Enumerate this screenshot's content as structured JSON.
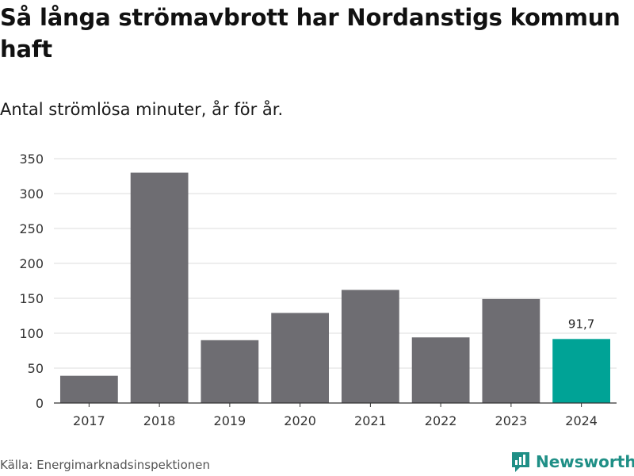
{
  "chart_data": {
    "type": "bar",
    "title": "Så långa strömavbrott har Nordanstigs kommun haft",
    "subtitle": "Antal strömlösa minuter, år för år.",
    "xlabel": "",
    "ylabel": "",
    "categories": [
      "2017",
      "2018",
      "2019",
      "2020",
      "2021",
      "2022",
      "2023",
      "2024"
    ],
    "values": [
      39,
      330,
      90,
      129,
      162,
      94,
      149,
      91.7
    ],
    "highlight_index": 7,
    "data_labels": [
      {
        "index": 7,
        "text": "91,7"
      }
    ],
    "ylim": [
      0,
      350
    ],
    "yticks": [
      0,
      50,
      100,
      150,
      200,
      250,
      300,
      350
    ],
    "grid": true,
    "colors": {
      "bar": "#6e6d72",
      "highlight": "#00a396",
      "grid": "#dcdcdc",
      "axis": "#333333"
    }
  },
  "footer": {
    "source": "Källa: Energimarknadsinspektionen",
    "brand": "Newsworthy",
    "brand_icon": "bar-chart-speech-icon"
  }
}
